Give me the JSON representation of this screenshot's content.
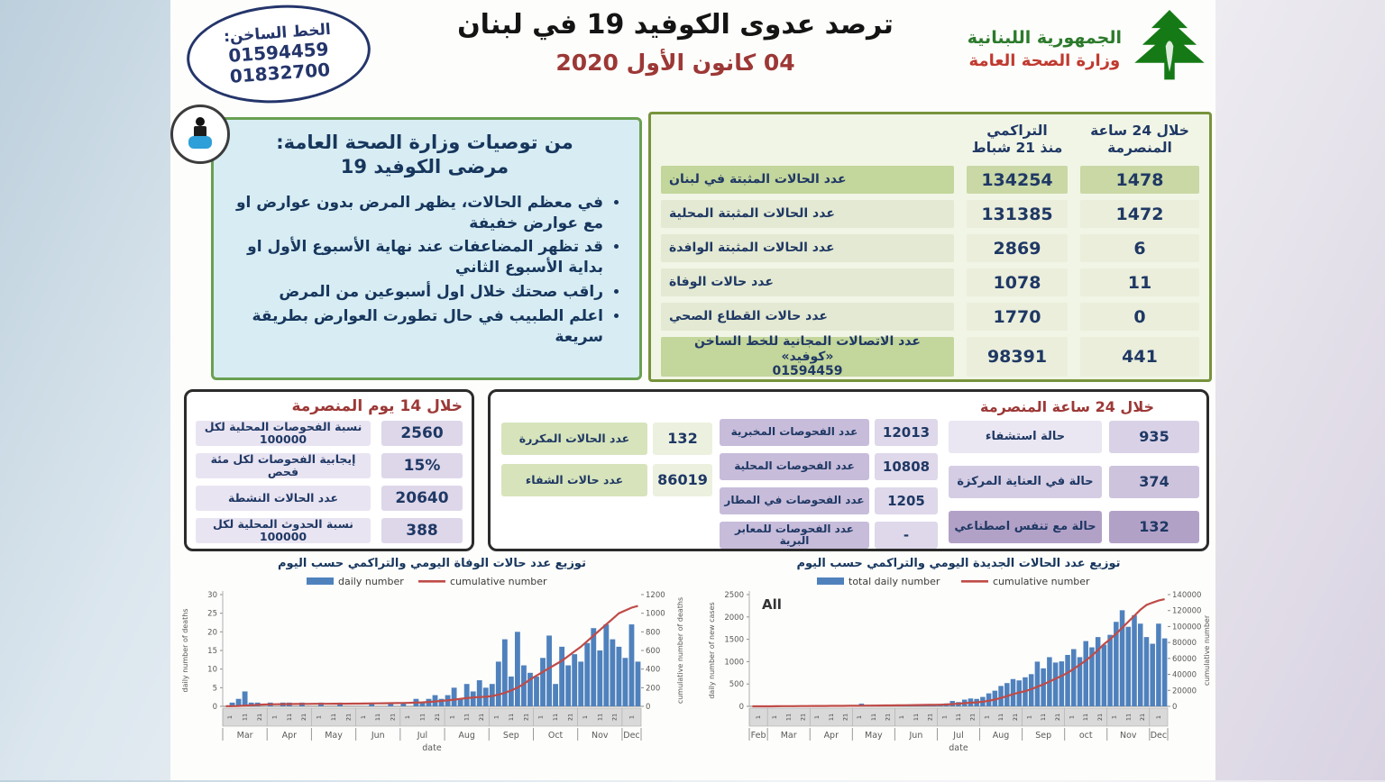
{
  "header": {
    "hotline_title": "الخط الساخن:",
    "hotline_numbers": [
      "01594459",
      "01832700"
    ],
    "title": "ترصد عدوى الكوفيد 19 في لبنان",
    "date": "04 كانون الأول 2020",
    "ministry_line1": "الجمهورية اللبنانية",
    "ministry_line2": "وزارة الصحة العامة"
  },
  "recommendations": {
    "title_line1": "من توصيات وزارة الصحة العامة:",
    "title_line2": "مرضى الكوفيد 19",
    "bullets": [
      "في معظم الحالات، يظهر المرض بدون عوارض او مع عوارض خفيفة",
      "قد تظهر المضاعفات عند نهاية الأسبوع الأول او بداية الأسبوع الثاني",
      "راقب صحتك خلال اول أسبوعين من المرض",
      "اعلم الطبيب في حال تطورت العوارض بطريقة سريعة"
    ]
  },
  "main_table": {
    "col_cumulative_l1": "التراكمي",
    "col_cumulative_l2": "منذ 21 شباط",
    "col_24h_l1": "خلال 24 ساعة",
    "col_24h_l2": "المنصرمة",
    "rows": [
      {
        "label": "عدد الحالات المثبتة في لبنان",
        "cumulative": "134254",
        "last24h": "1478"
      },
      {
        "label": "عدد الحالات المثبتة المحلية",
        "cumulative": "131385",
        "last24h": "1472"
      },
      {
        "label": "عدد الحالات المثبتة الوافدة",
        "cumulative": "2869",
        "last24h": "6"
      },
      {
        "label": "عدد حالات الوفاة",
        "cumulative": "1078",
        "last24h": "11"
      },
      {
        "label": "عدد حالات القطاع الصحي",
        "cumulative": "1770",
        "last24h": "0"
      },
      {
        "label": "عدد الاتصالات المجانية للخط الساخن «كوفيد»\n01594459",
        "cumulative": "98391",
        "last24h": "441"
      }
    ]
  },
  "last14days": {
    "title": "خلال 14 يوم المنصرمة",
    "rows": [
      {
        "label": "نسبة الفحوصات المحلية لكل 100000",
        "value": "2560"
      },
      {
        "label": "إيجابية الفحوصات لكل مئة فحص",
        "value": "15%"
      },
      {
        "label": "عدد الحالات النشطة",
        "value": "20640"
      },
      {
        "label": "نسبة الحدوث المحلية لكل 100000",
        "value": "388"
      }
    ]
  },
  "last24h_box": {
    "title": "خلال 24 ساعة المنصرمة",
    "case_stats": [
      {
        "label": "عدد الحالات المكررة",
        "value": "132"
      },
      {
        "label": "عدد حالات الشفاء",
        "value": "86019"
      }
    ],
    "test_stats": [
      {
        "label": "عدد الفحوصات المخبرية",
        "value": "12013"
      },
      {
        "label": "عدد الفحوصات المحلية",
        "value": "10808"
      },
      {
        "label": "عدد الفحوصات في المطار",
        "value": "1205"
      },
      {
        "label": "عدد الفحوصات للمعابر البرية",
        "value": "-"
      }
    ],
    "hospital_stats": [
      {
        "label": "حالة استشفاء",
        "value": "935"
      },
      {
        "label": "حالة في العناية المركزة",
        "value": "374"
      },
      {
        "label": "حالة مع تنفس اصطناعي",
        "value": "132"
      }
    ]
  },
  "colors": {
    "bar_blue": "#4f81bd",
    "line_red": "#bf4b47",
    "table_green_dark": "#c3d69b",
    "table_green_light": "#e3e9d2",
    "purple_dark": "#b2a1c7",
    "navy_text": "#1f3864",
    "dark_red": "#9c3836"
  },
  "chart_data": [
    {
      "type": "bar",
      "title": "توزيع عدد حالات الوفاة اليومي والتراكمي حسب اليوم",
      "legend": [
        {
          "label": "daily number",
          "swatch": "bar",
          "color": "#4f81bd"
        },
        {
          "label": "cumulative number",
          "swatch": "line",
          "color": "#bf4b47"
        }
      ],
      "ylabel_left": "daily number of deaths",
      "ylabel_right": "cumulative number of deaths",
      "xlabel": "date",
      "ylim_left": [
        0,
        30
      ],
      "ystep_left": 5,
      "ylim_right": [
        0,
        1200
      ],
      "ystep_right": 200,
      "months": [
        "Mar",
        "Apr",
        "May",
        "Jun",
        "Jul",
        "Aug",
        "Sep",
        "Oct",
        "Nov",
        "Dec"
      ],
      "points_per_month": [
        7,
        7,
        7,
        7,
        7,
        7,
        7,
        7,
        7,
        3
      ],
      "series": [
        {
          "name": "daily number",
          "type": "bar",
          "axis": "left",
          "values": [
            0,
            1,
            2,
            4,
            1,
            1,
            0,
            1,
            0,
            1,
            1,
            0,
            1,
            0,
            0,
            1,
            0,
            0,
            1,
            0,
            0,
            0,
            0,
            1,
            0,
            0,
            1,
            0,
            1,
            0,
            2,
            1,
            2,
            3,
            2,
            3,
            5,
            2,
            6,
            4,
            7,
            5,
            6,
            12,
            18,
            8,
            20,
            11,
            9,
            8,
            13,
            19,
            6,
            16,
            11,
            14,
            12,
            17,
            21,
            15,
            22,
            18,
            16,
            13,
            22,
            12
          ]
        },
        {
          "name": "cumulative number",
          "type": "line",
          "axis": "right",
          "values": [
            1,
            2,
            4,
            8,
            12,
            16,
            19,
            21,
            22,
            23,
            24,
            25,
            26,
            26,
            27,
            27,
            27,
            28,
            28,
            28,
            29,
            29,
            30,
            31,
            32,
            33,
            34,
            35,
            36,
            38,
            40,
            43,
            47,
            52,
            58,
            65,
            72,
            80,
            88,
            95,
            100,
            103,
            110,
            125,
            145,
            170,
            200,
            240,
            290,
            330,
            370,
            410,
            450,
            490,
            540,
            590,
            640,
            700,
            760,
            820,
            880,
            940,
            1000,
            1030,
            1060,
            1078
          ]
        }
      ]
    },
    {
      "type": "bar",
      "title": "توزيع عدد الحالات الجديدة اليومي والتراكمي حسب اليوم",
      "annotation": "All",
      "legend": [
        {
          "label": "total daily number",
          "swatch": "bar",
          "color": "#4f81bd"
        },
        {
          "label": "cumulative number",
          "swatch": "line",
          "color": "#bf4b47"
        }
      ],
      "ylabel_left": "daily number of new cases",
      "ylabel_right": "cumulative number",
      "xlabel": "date",
      "ylim_left": [
        0,
        2500
      ],
      "ystep_left": 500,
      "ylim_right": [
        0,
        140000
      ],
      "ystep_right": 20000,
      "months": [
        "Feb",
        "Mar",
        "Apr",
        "May",
        "Jun",
        "Jul",
        "Aug",
        "Sep",
        "oct",
        "Nov",
        "Dec"
      ],
      "points_per_month": [
        3,
        7,
        7,
        7,
        7,
        7,
        7,
        7,
        7,
        7,
        3
      ],
      "series": [
        {
          "name": "total daily number",
          "type": "bar",
          "axis": "left",
          "values": [
            1,
            2,
            3,
            8,
            12,
            15,
            10,
            14,
            9,
            11,
            12,
            8,
            15,
            10,
            6,
            12,
            9,
            25,
            60,
            15,
            35,
            20,
            10,
            18,
            12,
            18,
            25,
            15,
            20,
            28,
            22,
            35,
            65,
            120,
            95,
            150,
            175,
            166,
            210,
            290,
            350,
            456,
            520,
            610,
            580,
            650,
            720,
            1000,
            850,
            1100,
            980,
            1006,
            1150,
            1280,
            1100,
            1460,
            1320,
            1550,
            1380,
            1600,
            1890,
            2150,
            1780,
            2040,
            1850,
            1550,
            1400,
            1850,
            1520
          ]
        },
        {
          "name": "cumulative number",
          "type": "line",
          "axis": "right",
          "values": [
            5,
            10,
            20,
            50,
            100,
            170,
            230,
            280,
            320,
            360,
            400,
            440,
            480,
            520,
            560,
            600,
            650,
            700,
            780,
            850,
            950,
            1050,
            1100,
            1160,
            1250,
            1350,
            1450,
            1550,
            1650,
            1750,
            1850,
            2000,
            2300,
            2800,
            3300,
            3900,
            4500,
            5000,
            5800,
            7000,
            8500,
            10500,
            12800,
            15200,
            17300,
            19000,
            21500,
            24500,
            27500,
            31000,
            34500,
            38000,
            42000,
            47000,
            52000,
            57500,
            63500,
            70500,
            78000,
            84000,
            91000,
            98500,
            106000,
            113500,
            121000,
            127000,
            130000,
            132500,
            134254
          ]
        }
      ]
    }
  ]
}
